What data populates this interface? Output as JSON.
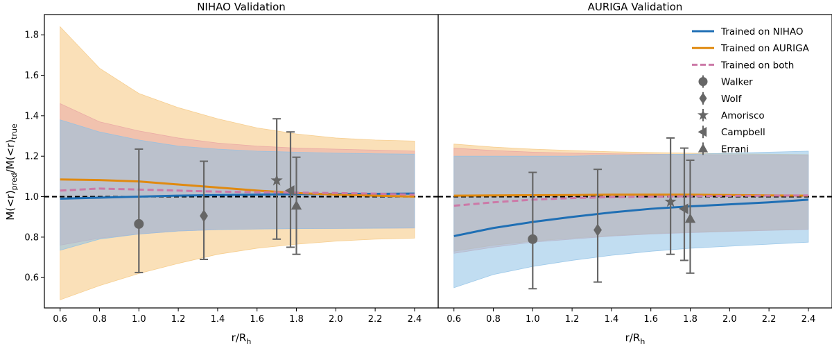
{
  "figure": {
    "ylabel": "M(<r)pred/M(<r)true",
    "ylabel_main_1": "M(<r)",
    "ylabel_sub_1": "pred",
    "ylabel_main_2": "/M(<r)",
    "ylabel_sub_2": "true",
    "xlabel_main": "r/R",
    "xlabel_sub": "h"
  },
  "legend": {
    "entries": [
      {
        "label": "Trained on NIHAO",
        "kind": "line",
        "color": "#1f6fb4"
      },
      {
        "label": "Trained on AURIGA",
        "kind": "line",
        "color": "#e08a10"
      },
      {
        "label": "Trained on both",
        "kind": "dashed",
        "color": "#cc79a7"
      },
      {
        "label": "Walker",
        "kind": "marker",
        "marker": "circle"
      },
      {
        "label": "Wolf",
        "kind": "marker",
        "marker": "diamond"
      },
      {
        "label": "Amorisco",
        "kind": "marker",
        "marker": "star"
      },
      {
        "label": "Campbell",
        "kind": "marker",
        "marker": "triangle-left"
      },
      {
        "label": "Errani",
        "kind": "marker",
        "marker": "triangle-up"
      }
    ]
  },
  "colors": {
    "nihao": "#1f6fb4",
    "auriga": "#e08a10",
    "both": "#cc79a7",
    "nihao_band": "#8ec1e6",
    "auriga_band": "#f5c77e",
    "both_band": "#e8a3a3",
    "estimator": "#666666",
    "reference": "#000000"
  },
  "chart_data": [
    {
      "type": "line",
      "title": "NIHAO Validation",
      "xlabel": "r/Rh",
      "ylabel": "M(<r)pred/M(<r)true",
      "xlim": [
        0.52,
        2.52
      ],
      "ylim": [
        0.45,
        1.9
      ],
      "xticks": [
        "0.6",
        "0.8",
        "1.0",
        "1.2",
        "1.4",
        "1.6",
        "1.8",
        "2.0",
        "2.2",
        "2.4"
      ],
      "yticks": [
        "0.6",
        "0.8",
        "1.0",
        "1.2",
        "1.4",
        "1.6",
        "1.8"
      ],
      "reference_line": 1.0,
      "x": [
        0.6,
        0.8,
        1.0,
        1.2,
        1.4,
        1.6,
        1.8,
        2.0,
        2.2,
        2.4
      ],
      "series": [
        {
          "name": "Trained on NIHAO",
          "key": "nihao",
          "style": "solid",
          "values": [
            0.99,
            0.995,
            1.0,
            1.005,
            1.008,
            1.01,
            1.012,
            1.013,
            1.014,
            1.015
          ],
          "lower": [
            0.735,
            0.79,
            0.815,
            0.83,
            0.837,
            0.84,
            0.842,
            0.843,
            0.844,
            0.845
          ],
          "upper": [
            1.38,
            1.32,
            1.28,
            1.25,
            1.235,
            1.225,
            1.22,
            1.215,
            1.212,
            1.21
          ]
        },
        {
          "name": "Trained on AURIGA",
          "key": "auriga",
          "style": "solid",
          "values": [
            1.085,
            1.082,
            1.075,
            1.06,
            1.045,
            1.03,
            1.018,
            1.01,
            1.005,
            1.0
          ],
          "lower": [
            0.49,
            0.56,
            0.62,
            0.67,
            0.715,
            0.745,
            0.765,
            0.78,
            0.79,
            0.795
          ],
          "upper": [
            1.84,
            1.635,
            1.51,
            1.44,
            1.385,
            1.34,
            1.31,
            1.29,
            1.28,
            1.275
          ]
        },
        {
          "name": "Trained on both",
          "key": "both",
          "style": "dashed",
          "values": [
            1.03,
            1.04,
            1.035,
            1.03,
            1.025,
            1.022,
            1.02,
            1.018,
            1.015,
            1.01
          ],
          "lower": [
            0.76,
            0.795,
            0.815,
            0.83,
            0.837,
            0.84,
            0.842,
            0.843,
            0.844,
            0.845
          ],
          "upper": [
            1.46,
            1.37,
            1.325,
            1.29,
            1.265,
            1.25,
            1.24,
            1.235,
            1.23,
            1.225
          ]
        }
      ],
      "estimators": [
        {
          "name": "Walker",
          "marker": "circle",
          "x": 1.0,
          "y": 0.865,
          "ylow": 0.625,
          "yhigh": 1.235
        },
        {
          "name": "Wolf",
          "marker": "diamond",
          "x": 1.33,
          "y": 0.905,
          "ylow": 0.69,
          "yhigh": 1.175
        },
        {
          "name": "Amorisco",
          "marker": "star",
          "x": 1.7,
          "y": 1.08,
          "ylow": 0.79,
          "yhigh": 1.385
        },
        {
          "name": "Campbell",
          "marker": "triangle-left",
          "x": 1.77,
          "y": 1.03,
          "ylow": 0.75,
          "yhigh": 1.32
        },
        {
          "name": "Errani",
          "marker": "triangle-up",
          "x": 1.8,
          "y": 0.955,
          "ylow": 0.715,
          "yhigh": 1.195
        }
      ]
    },
    {
      "type": "line",
      "title": "AURIGA Validation",
      "xlabel": "r/Rh",
      "ylabel": "",
      "xlim": [
        0.52,
        2.52
      ],
      "ylim": [
        0.45,
        1.9
      ],
      "xticks": [
        "0.6",
        "0.8",
        "1.0",
        "1.2",
        "1.4",
        "1.6",
        "1.8",
        "2.0",
        "2.2",
        "2.4"
      ],
      "yticks": [],
      "reference_line": 1.0,
      "x": [
        0.6,
        0.8,
        1.0,
        1.2,
        1.4,
        1.6,
        1.8,
        2.0,
        2.2,
        2.4
      ],
      "series": [
        {
          "name": "Trained on NIHAO",
          "key": "nihao",
          "style": "solid",
          "values": [
            0.805,
            0.845,
            0.875,
            0.9,
            0.922,
            0.94,
            0.952,
            0.962,
            0.972,
            0.985
          ],
          "lower": [
            0.55,
            0.615,
            0.655,
            0.685,
            0.71,
            0.73,
            0.745,
            0.755,
            0.765,
            0.775
          ],
          "upper": [
            1.2,
            1.2,
            1.2,
            1.2,
            1.205,
            1.208,
            1.21,
            1.215,
            1.22,
            1.225
          ]
        },
        {
          "name": "Trained on AURIGA",
          "key": "auriga",
          "style": "solid",
          "values": [
            1.005,
            1.006,
            1.007,
            1.008,
            1.01,
            1.01,
            1.01,
            1.008,
            1.006,
            1.005
          ],
          "lower": [
            0.73,
            0.76,
            0.78,
            0.795,
            0.808,
            0.818,
            0.825,
            0.83,
            0.835,
            0.84
          ],
          "upper": [
            1.26,
            1.245,
            1.235,
            1.228,
            1.222,
            1.218,
            1.215,
            1.212,
            1.21,
            1.208
          ]
        },
        {
          "name": "Trained on both",
          "key": "both",
          "style": "dashed",
          "values": [
            0.955,
            0.972,
            0.985,
            0.993,
            0.998,
            1.0,
            1.002,
            1.004,
            1.005,
            1.006
          ],
          "lower": [
            0.72,
            0.75,
            0.775,
            0.79,
            0.805,
            0.815,
            0.822,
            0.828,
            0.833,
            0.838
          ],
          "upper": [
            1.24,
            1.228,
            1.22,
            1.215,
            1.212,
            1.21,
            1.208,
            1.206,
            1.205,
            1.204
          ]
        }
      ],
      "estimators": [
        {
          "name": "Walker",
          "marker": "circle",
          "x": 1.0,
          "y": 0.79,
          "ylow": 0.545,
          "yhigh": 1.12
        },
        {
          "name": "Wolf",
          "marker": "diamond",
          "x": 1.33,
          "y": 0.835,
          "ylow": 0.578,
          "yhigh": 1.135
        },
        {
          "name": "Amorisco",
          "marker": "star",
          "x": 1.7,
          "y": 0.975,
          "ylow": 0.715,
          "yhigh": 1.29
        },
        {
          "name": "Campbell",
          "marker": "triangle-left",
          "x": 1.77,
          "y": 0.94,
          "ylow": 0.685,
          "yhigh": 1.24
        },
        {
          "name": "Errani",
          "marker": "triangle-up",
          "x": 1.8,
          "y": 0.89,
          "ylow": 0.622,
          "yhigh": 1.18
        }
      ]
    }
  ]
}
